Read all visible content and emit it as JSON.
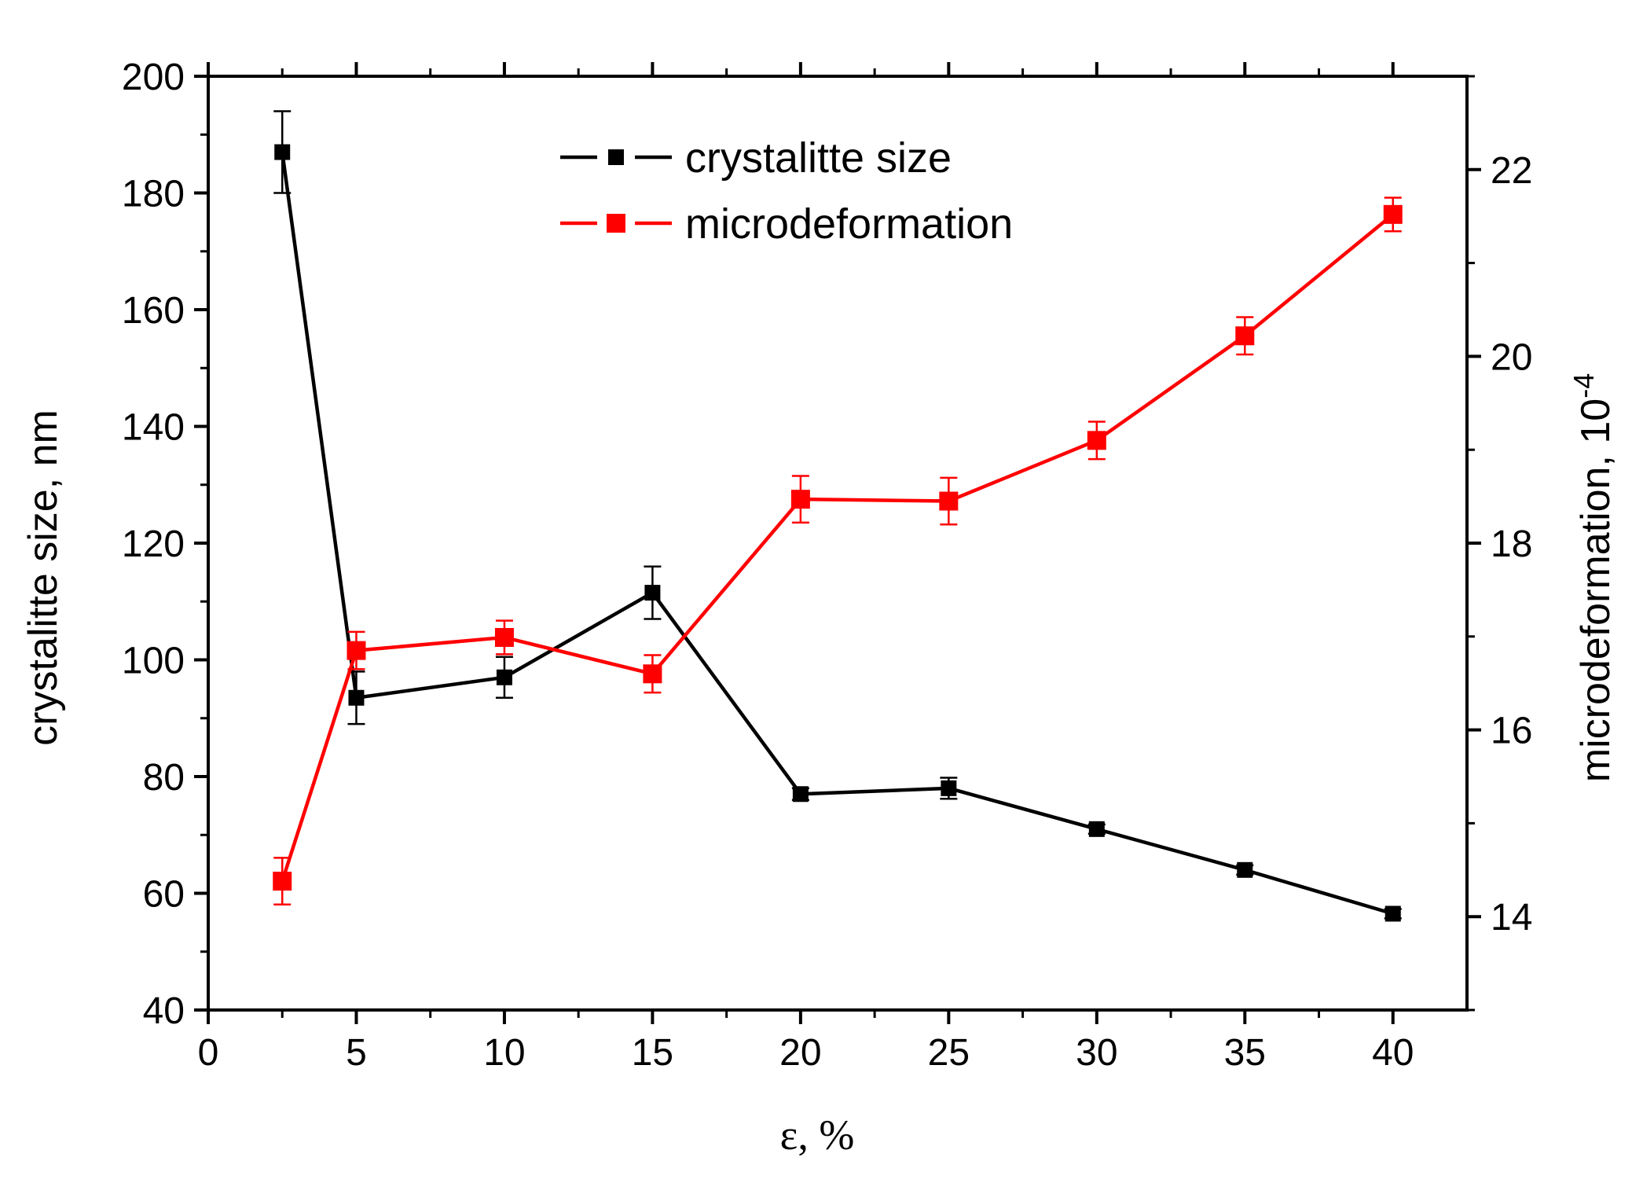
{
  "chart_data": {
    "type": "line",
    "xlabel": "ε, %",
    "ylabel_left": "crystalitte size, nm",
    "ylabel_right": "microdeformation, 10",
    "ylabel_right_exponent": "-4",
    "xlim": [
      0,
      42.5
    ],
    "ylim_left": [
      40,
      200
    ],
    "ylim_right": [
      13,
      23
    ],
    "x_ticks": [
      0,
      5,
      10,
      15,
      20,
      25,
      30,
      35,
      40
    ],
    "x_tick_labels": [
      "0",
      "5",
      "10",
      "15",
      "20",
      "25",
      "30",
      "35",
      "40"
    ],
    "y_left_ticks": [
      40,
      60,
      80,
      100,
      120,
      140,
      160,
      180,
      200
    ],
    "y_left_tick_labels": [
      "40",
      "60",
      "80",
      "100",
      "120",
      "140",
      "160",
      "180",
      "200"
    ],
    "y_right_ticks": [
      14,
      16,
      18,
      20,
      22
    ],
    "y_right_tick_labels": [
      "14",
      "16",
      "18",
      "20",
      "22"
    ],
    "grid": false,
    "legend_position": "top-center",
    "series": [
      {
        "name": "crystalitte size",
        "axis": "left",
        "color": "#000000",
        "marker": "square",
        "x": [
          2.5,
          5,
          10,
          15,
          20,
          25,
          30,
          35,
          40
        ],
        "y": [
          187,
          93.5,
          97,
          111.5,
          77,
          78,
          71,
          64,
          56.5
        ],
        "y_err": [
          7,
          4.5,
          3.5,
          4.5,
          1,
          1.8,
          0.8,
          0.8,
          0.8
        ]
      },
      {
        "name": "microdeformation",
        "axis": "right",
        "color": "#ff0000",
        "marker": "square",
        "x": [
          2.5,
          5,
          10,
          15,
          20,
          25,
          30,
          35,
          40
        ],
        "y": [
          14.38,
          16.85,
          16.99,
          16.6,
          18.47,
          18.45,
          19.1,
          20.22,
          21.52
        ],
        "y_err": [
          0.25,
          0.2,
          0.18,
          0.2,
          0.25,
          0.25,
          0.2,
          0.2,
          0.18
        ]
      }
    ]
  }
}
